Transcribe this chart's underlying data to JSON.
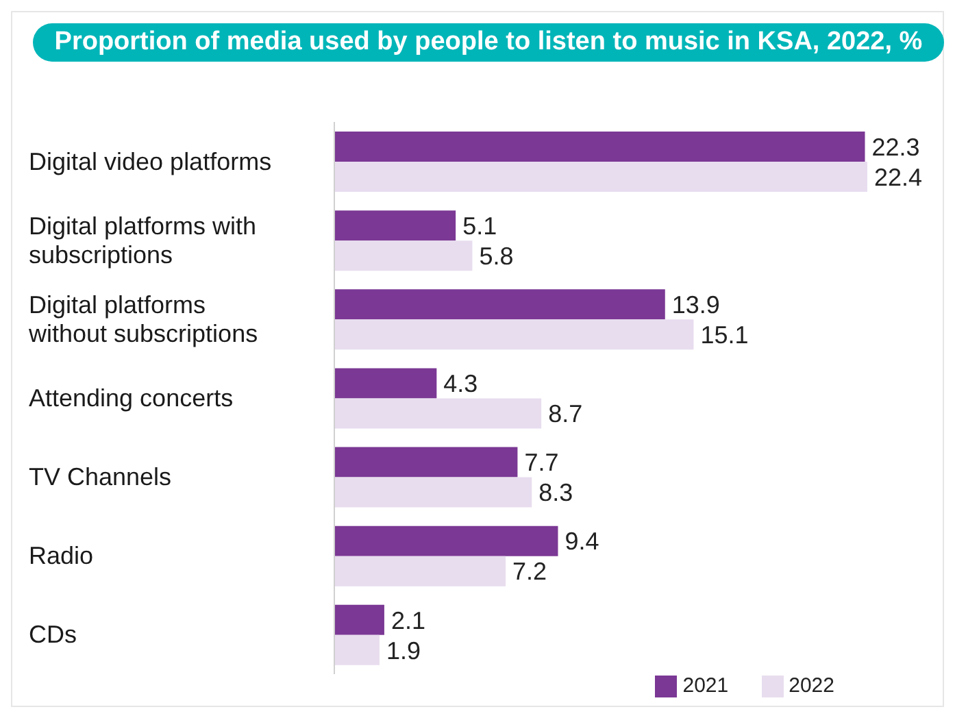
{
  "chart_data": {
    "type": "bar",
    "orientation": "horizontal",
    "title": "Proportion of media used by people to listen to music in KSA, 2022, %",
    "categories": [
      "Digital video platforms",
      "Digital platforms with subscriptions",
      "Digital platforms without subscriptions",
      "Attending concerts",
      "TV Channels",
      "Radio",
      "CDs"
    ],
    "series": [
      {
        "name": "2021",
        "color": "#7b3894",
        "values": [
          22.3,
          5.1,
          13.9,
          4.3,
          7.7,
          9.4,
          2.1
        ]
      },
      {
        "name": "2022",
        "color": "#e8ddef",
        "values": [
          22.4,
          5.8,
          15.1,
          8.7,
          8.3,
          7.2,
          1.9
        ]
      }
    ],
    "data_labels": true,
    "grid": false,
    "legend": "bottom right"
  }
}
